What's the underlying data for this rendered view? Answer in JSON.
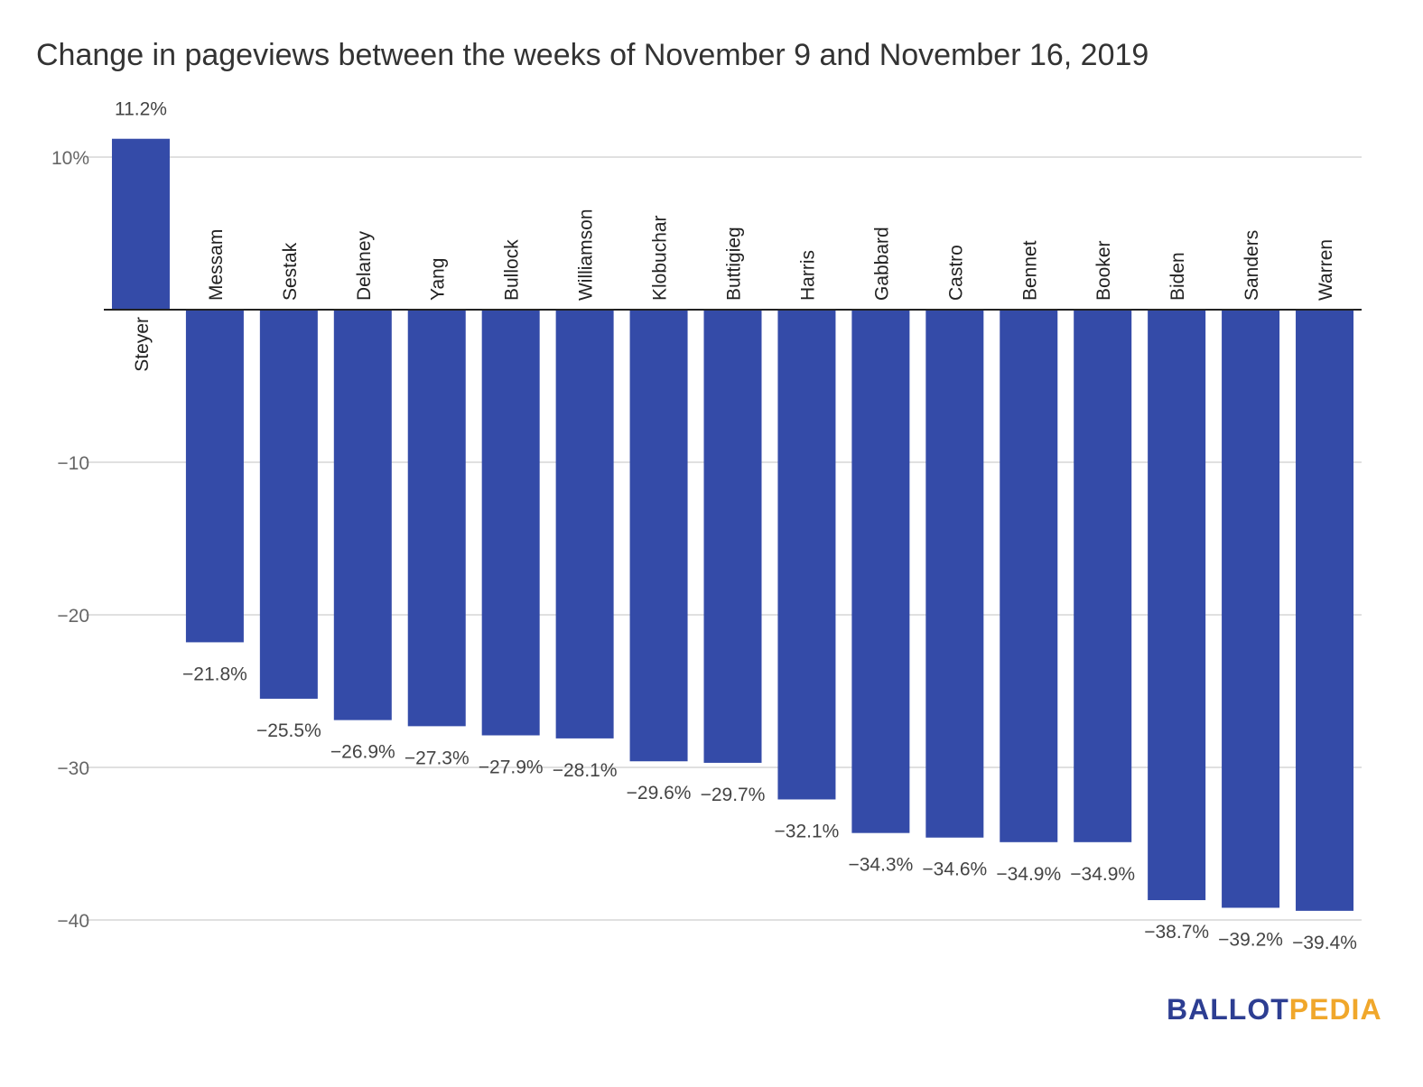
{
  "colors": {
    "bar": "#344ba8",
    "grid": "#d6d6d6",
    "zero_line": "#222222"
  },
  "logo": {
    "part1": "BALLOT",
    "part2": "PEDIA"
  },
  "chart_data": {
    "type": "bar",
    "title": "Change in pageviews between the weeks of November 9 and November 16, 2019",
    "xlabel": "",
    "ylabel": "",
    "ylim": [
      -40,
      10
    ],
    "yticks": [
      10,
      -10,
      -20,
      -30,
      -40
    ],
    "ytick_labels": [
      "10%",
      "−10",
      "−20",
      "−30",
      "−40"
    ],
    "grid": true,
    "categories": [
      "Steyer",
      "Messam",
      "Sestak",
      "Delaney",
      "Yang",
      "Bullock",
      "Williamson",
      "Klobuchar",
      "Buttigieg",
      "Harris",
      "Gabbard",
      "Castro",
      "Bennet",
      "Booker",
      "Biden",
      "Sanders",
      "Warren"
    ],
    "values": [
      11.2,
      -21.8,
      -25.5,
      -26.9,
      -27.3,
      -27.9,
      -28.1,
      -29.6,
      -29.7,
      -32.1,
      -34.3,
      -34.6,
      -34.9,
      -34.9,
      -38.7,
      -39.2,
      -39.4
    ],
    "data_labels": [
      "11.2%",
      "−21.8%",
      "−25.5%",
      "−26.9%",
      "−27.3%",
      "−27.9%",
      "−28.1%",
      "−29.6%",
      "−29.7%",
      "−32.1%",
      "−34.3%",
      "−34.6%",
      "−34.9%",
      "−34.9%",
      "−38.7%",
      "−39.2%",
      "−39.4%"
    ]
  }
}
